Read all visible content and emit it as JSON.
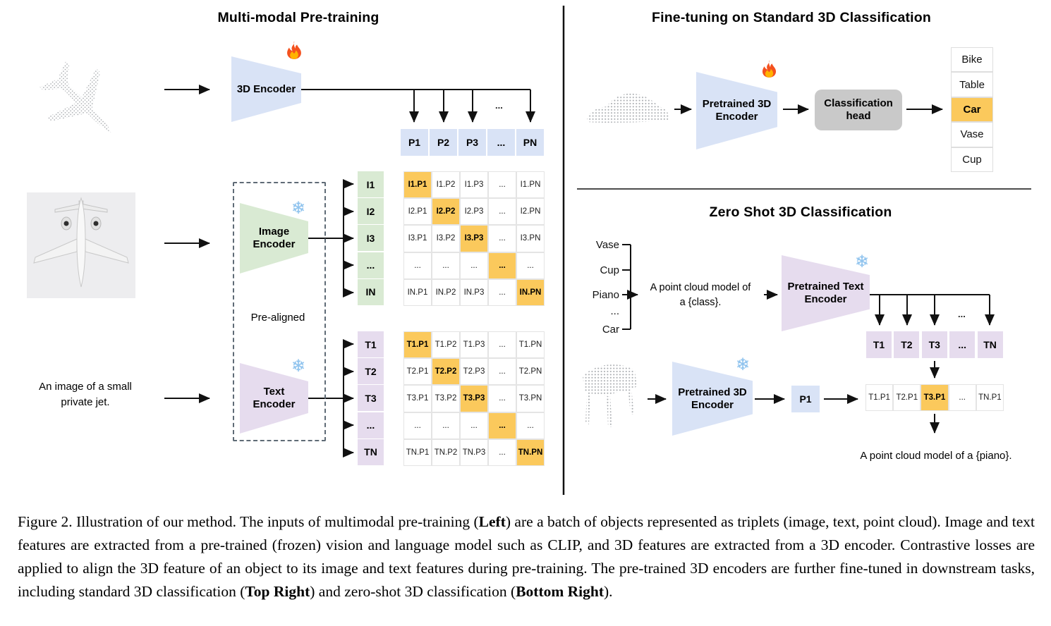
{
  "icons": {
    "fire": "🔥",
    "snowflake": "❄"
  },
  "colors": {
    "blue": "#d9e3f6",
    "green": "#d9ead3",
    "purple": "#e6dcee",
    "orange": "#fbc95c",
    "head_gray": "#c9c9c9"
  },
  "pretraining": {
    "title": "Multi-modal Pre-training",
    "encoder_3d": {
      "label": "3D Encoder"
    },
    "image_encoder": {
      "label_line1": "Image",
      "label_line2": "Encoder"
    },
    "text_encoder": {
      "label_line1": "Text",
      "label_line2": "Encoder"
    },
    "prealigned_label": "Pre-aligned",
    "text_input_line1": "An image of a small",
    "text_input_line2": "private jet.",
    "ellipsis": "...",
    "p_row": [
      "P1",
      "P2",
      "P3",
      "...",
      "PN"
    ],
    "image_rows": [
      "I1",
      "I2",
      "I3",
      "...",
      "IN"
    ],
    "image_matrix": [
      [
        "I1.P1",
        "I1.P2",
        "I1.P3",
        "...",
        "I1.PN"
      ],
      [
        "I2.P1",
        "I2.P2",
        "I2.P3",
        "...",
        "I2.PN"
      ],
      [
        "I3.P1",
        "I3.P2",
        "I3.P3",
        "...",
        "I3.PN"
      ],
      [
        "...",
        "...",
        "...",
        "...",
        "..."
      ],
      [
        "IN.P1",
        "IN.P2",
        "IN.P3",
        "...",
        "IN.PN"
      ]
    ],
    "text_rows": [
      "T1",
      "T2",
      "T3",
      "...",
      "TN"
    ],
    "text_matrix": [
      [
        "T1.P1",
        "T1.P2",
        "T1.P3",
        "...",
        "T1.PN"
      ],
      [
        "T2.P1",
        "T2.P2",
        "T2.P3",
        "...",
        "T2.PN"
      ],
      [
        "T3.P1",
        "T3.P2",
        "T3.P3",
        "...",
        "T3.PN"
      ],
      [
        "...",
        "...",
        "...",
        "...",
        "..."
      ],
      [
        "TN.P1",
        "TN.P2",
        "TN.P3",
        "...",
        "TN.PN"
      ]
    ]
  },
  "finetune": {
    "title": "Fine-tuning on Standard 3D Classification",
    "encoder": {
      "label_line1": "Pretrained 3D",
      "label_line2": "Encoder"
    },
    "head": {
      "label_line1": "Classification",
      "label_line2": "head"
    },
    "classes": [
      "Bike",
      "Table",
      "Car",
      "Vase",
      "Cup"
    ],
    "predicted_class": "Car"
  },
  "zeroshot": {
    "title": "Zero Shot 3D Classification",
    "class_list": [
      "Vase",
      "Cup",
      "Piano",
      "...",
      "Car"
    ],
    "prompt_line1": "A point cloud model of",
    "prompt_line2": "a {class}.",
    "text_encoder": {
      "label_line1": "Pretrained Text",
      "label_line2": "Encoder"
    },
    "encoder_3d": {
      "label_line1": "Pretrained 3D",
      "label_line2": "Encoder"
    },
    "p1_label": "P1",
    "ellipsis": "...",
    "t_row": [
      "T1",
      "T2",
      "T3",
      "...",
      "TN"
    ],
    "tp_row": [
      "T1.P1",
      "T2.P1",
      "T3.P1",
      "...",
      "TN.P1"
    ],
    "highlighted_cell": "T3.P1",
    "result_text": "A point cloud model of a {piano}."
  },
  "caption": {
    "segments": [
      {
        "text": "Figure 2. Illustration of our method. The inputs of multimodal pre-training (",
        "bold": false
      },
      {
        "text": "Left",
        "bold": true
      },
      {
        "text": ") are a batch of objects represented as triplets (image, text, point cloud). Image and text features are extracted from a pre-trained (frozen) vision and language model such as CLIP, and 3D features are extracted from a 3D encoder. Contrastive losses are applied to align the 3D feature of an object to its image and text features during pre-training. The pre-trained 3D encoders are further fine-tuned in downstream tasks, including standard 3D classification (",
        "bold": false
      },
      {
        "text": "Top Right",
        "bold": true
      },
      {
        "text": ") and zero-shot 3D classification (",
        "bold": false
      },
      {
        "text": "Bottom Right",
        "bold": true
      },
      {
        "text": ").",
        "bold": false
      }
    ]
  }
}
